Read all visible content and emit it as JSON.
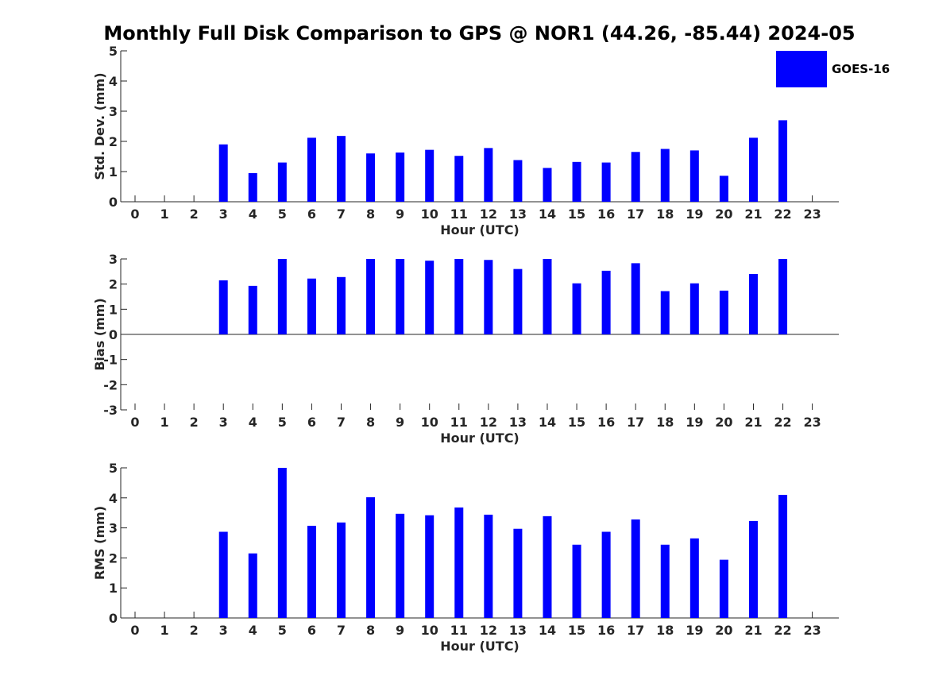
{
  "title": "Monthly Full Disk Comparison to GPS @ NOR1 (44.26, -85.44) 2024-05",
  "legend": {
    "label": "GOES-16",
    "color": "#0000ff"
  },
  "chart_data": [
    {
      "type": "bar",
      "xlabel": "Hour (UTC)",
      "ylabel": "Std. Dev. (mm)",
      "ylim": [
        0,
        5
      ],
      "yticks": [
        "0",
        "1",
        "2",
        "3",
        "4",
        "5"
      ],
      "categories": [
        "0",
        "1",
        "2",
        "3",
        "4",
        "5",
        "6",
        "7",
        "8",
        "9",
        "10",
        "11",
        "12",
        "13",
        "14",
        "15",
        "16",
        "17",
        "18",
        "19",
        "20",
        "21",
        "22",
        "23"
      ],
      "series": [
        {
          "name": "GOES-16",
          "values": [
            null,
            null,
            null,
            1.9,
            0.95,
            1.3,
            2.12,
            2.18,
            1.6,
            1.63,
            1.72,
            1.52,
            1.78,
            1.38,
            1.12,
            1.32,
            1.3,
            1.65,
            1.75,
            1.7,
            0.86,
            2.12,
            2.7,
            null
          ]
        }
      ]
    },
    {
      "type": "bar",
      "xlabel": "Hour (UTC)",
      "ylabel": "Bias (mm)",
      "ylim": [
        -3,
        3
      ],
      "yticks": [
        "-3",
        "-2",
        "-1",
        "0",
        "1",
        "2",
        "3"
      ],
      "categories": [
        "0",
        "1",
        "2",
        "3",
        "4",
        "5",
        "6",
        "7",
        "8",
        "9",
        "10",
        "11",
        "12",
        "13",
        "14",
        "15",
        "16",
        "17",
        "18",
        "19",
        "20",
        "21",
        "22",
        "23"
      ],
      "series": [
        {
          "name": "GOES-16",
          "values": [
            null,
            null,
            null,
            2.15,
            1.93,
            3.0,
            2.22,
            2.28,
            3.0,
            3.0,
            2.93,
            3.0,
            2.96,
            2.6,
            3.0,
            2.03,
            2.53,
            2.83,
            1.72,
            2.03,
            1.74,
            2.4,
            3.0,
            null
          ]
        }
      ]
    },
    {
      "type": "bar",
      "xlabel": "Hour (UTC)",
      "ylabel": "RMS (mm)",
      "ylim": [
        0,
        5
      ],
      "yticks": [
        "0",
        "1",
        "2",
        "3",
        "4",
        "5"
      ],
      "categories": [
        "0",
        "1",
        "2",
        "3",
        "4",
        "5",
        "6",
        "7",
        "8",
        "9",
        "10",
        "11",
        "12",
        "13",
        "14",
        "15",
        "16",
        "17",
        "18",
        "19",
        "20",
        "21",
        "22",
        "23"
      ],
      "series": [
        {
          "name": "GOES-16",
          "values": [
            null,
            null,
            null,
            2.87,
            2.15,
            5.0,
            3.07,
            3.18,
            4.02,
            3.47,
            3.42,
            3.68,
            3.44,
            2.97,
            3.39,
            2.44,
            2.87,
            3.28,
            2.44,
            2.65,
            1.94,
            3.23,
            4.1,
            null
          ]
        }
      ]
    }
  ]
}
